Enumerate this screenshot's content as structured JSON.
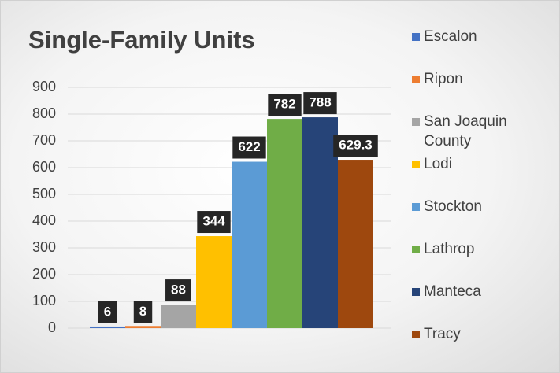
{
  "chart_data": {
    "type": "bar",
    "title": "Single-Family Units",
    "series": [
      {
        "name": "Escalon",
        "color": "#4472c4",
        "values": [
          6
        ]
      },
      {
        "name": "Ripon",
        "color": "#ed7d31",
        "values": [
          8
        ]
      },
      {
        "name": "San Joaquin County",
        "color": "#a5a5a5",
        "values": [
          88
        ]
      },
      {
        "name": "Lodi",
        "color": "#ffc000",
        "values": [
          344
        ]
      },
      {
        "name": "Stockton",
        "color": "#5b9bd5",
        "values": [
          622
        ]
      },
      {
        "name": "Lathrop",
        "color": "#70ad47",
        "values": [
          782
        ]
      },
      {
        "name": "Manteca",
        "color": "#264478",
        "values": [
          788
        ]
      },
      {
        "name": "Tracy",
        "color": "#9e480e",
        "values": [
          629.3
        ]
      }
    ],
    "ylim": [
      0,
      900
    ],
    "yticks": [
      0,
      100,
      200,
      300,
      400,
      500,
      600,
      700,
      800,
      900
    ],
    "grid": true,
    "legend": "right"
  }
}
